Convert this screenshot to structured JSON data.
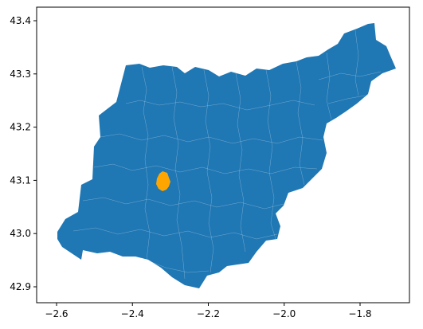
{
  "map": {
    "region_color": "#1f77b4",
    "highlight_color": "#ffa500",
    "boundary_color": "#ffffff",
    "x_axis": {
      "ticks": [
        {
          "value": -2.6,
          "label": "−2.6"
        },
        {
          "value": -2.4,
          "label": "−2.4"
        },
        {
          "value": -2.2,
          "label": "−2.2"
        },
        {
          "value": -2.0,
          "label": "−2.0"
        },
        {
          "value": -1.8,
          "label": "−1.8"
        }
      ]
    },
    "y_axis": {
      "ticks": [
        {
          "value": 42.9,
          "label": "42.9"
        },
        {
          "value": 43.0,
          "label": "43.0"
        },
        {
          "value": 43.1,
          "label": "43.1"
        },
        {
          "value": 43.2,
          "label": "43.2"
        },
        {
          "value": 43.3,
          "label": "43.3"
        },
        {
          "value": 43.4,
          "label": "43.4"
        }
      ]
    }
  }
}
